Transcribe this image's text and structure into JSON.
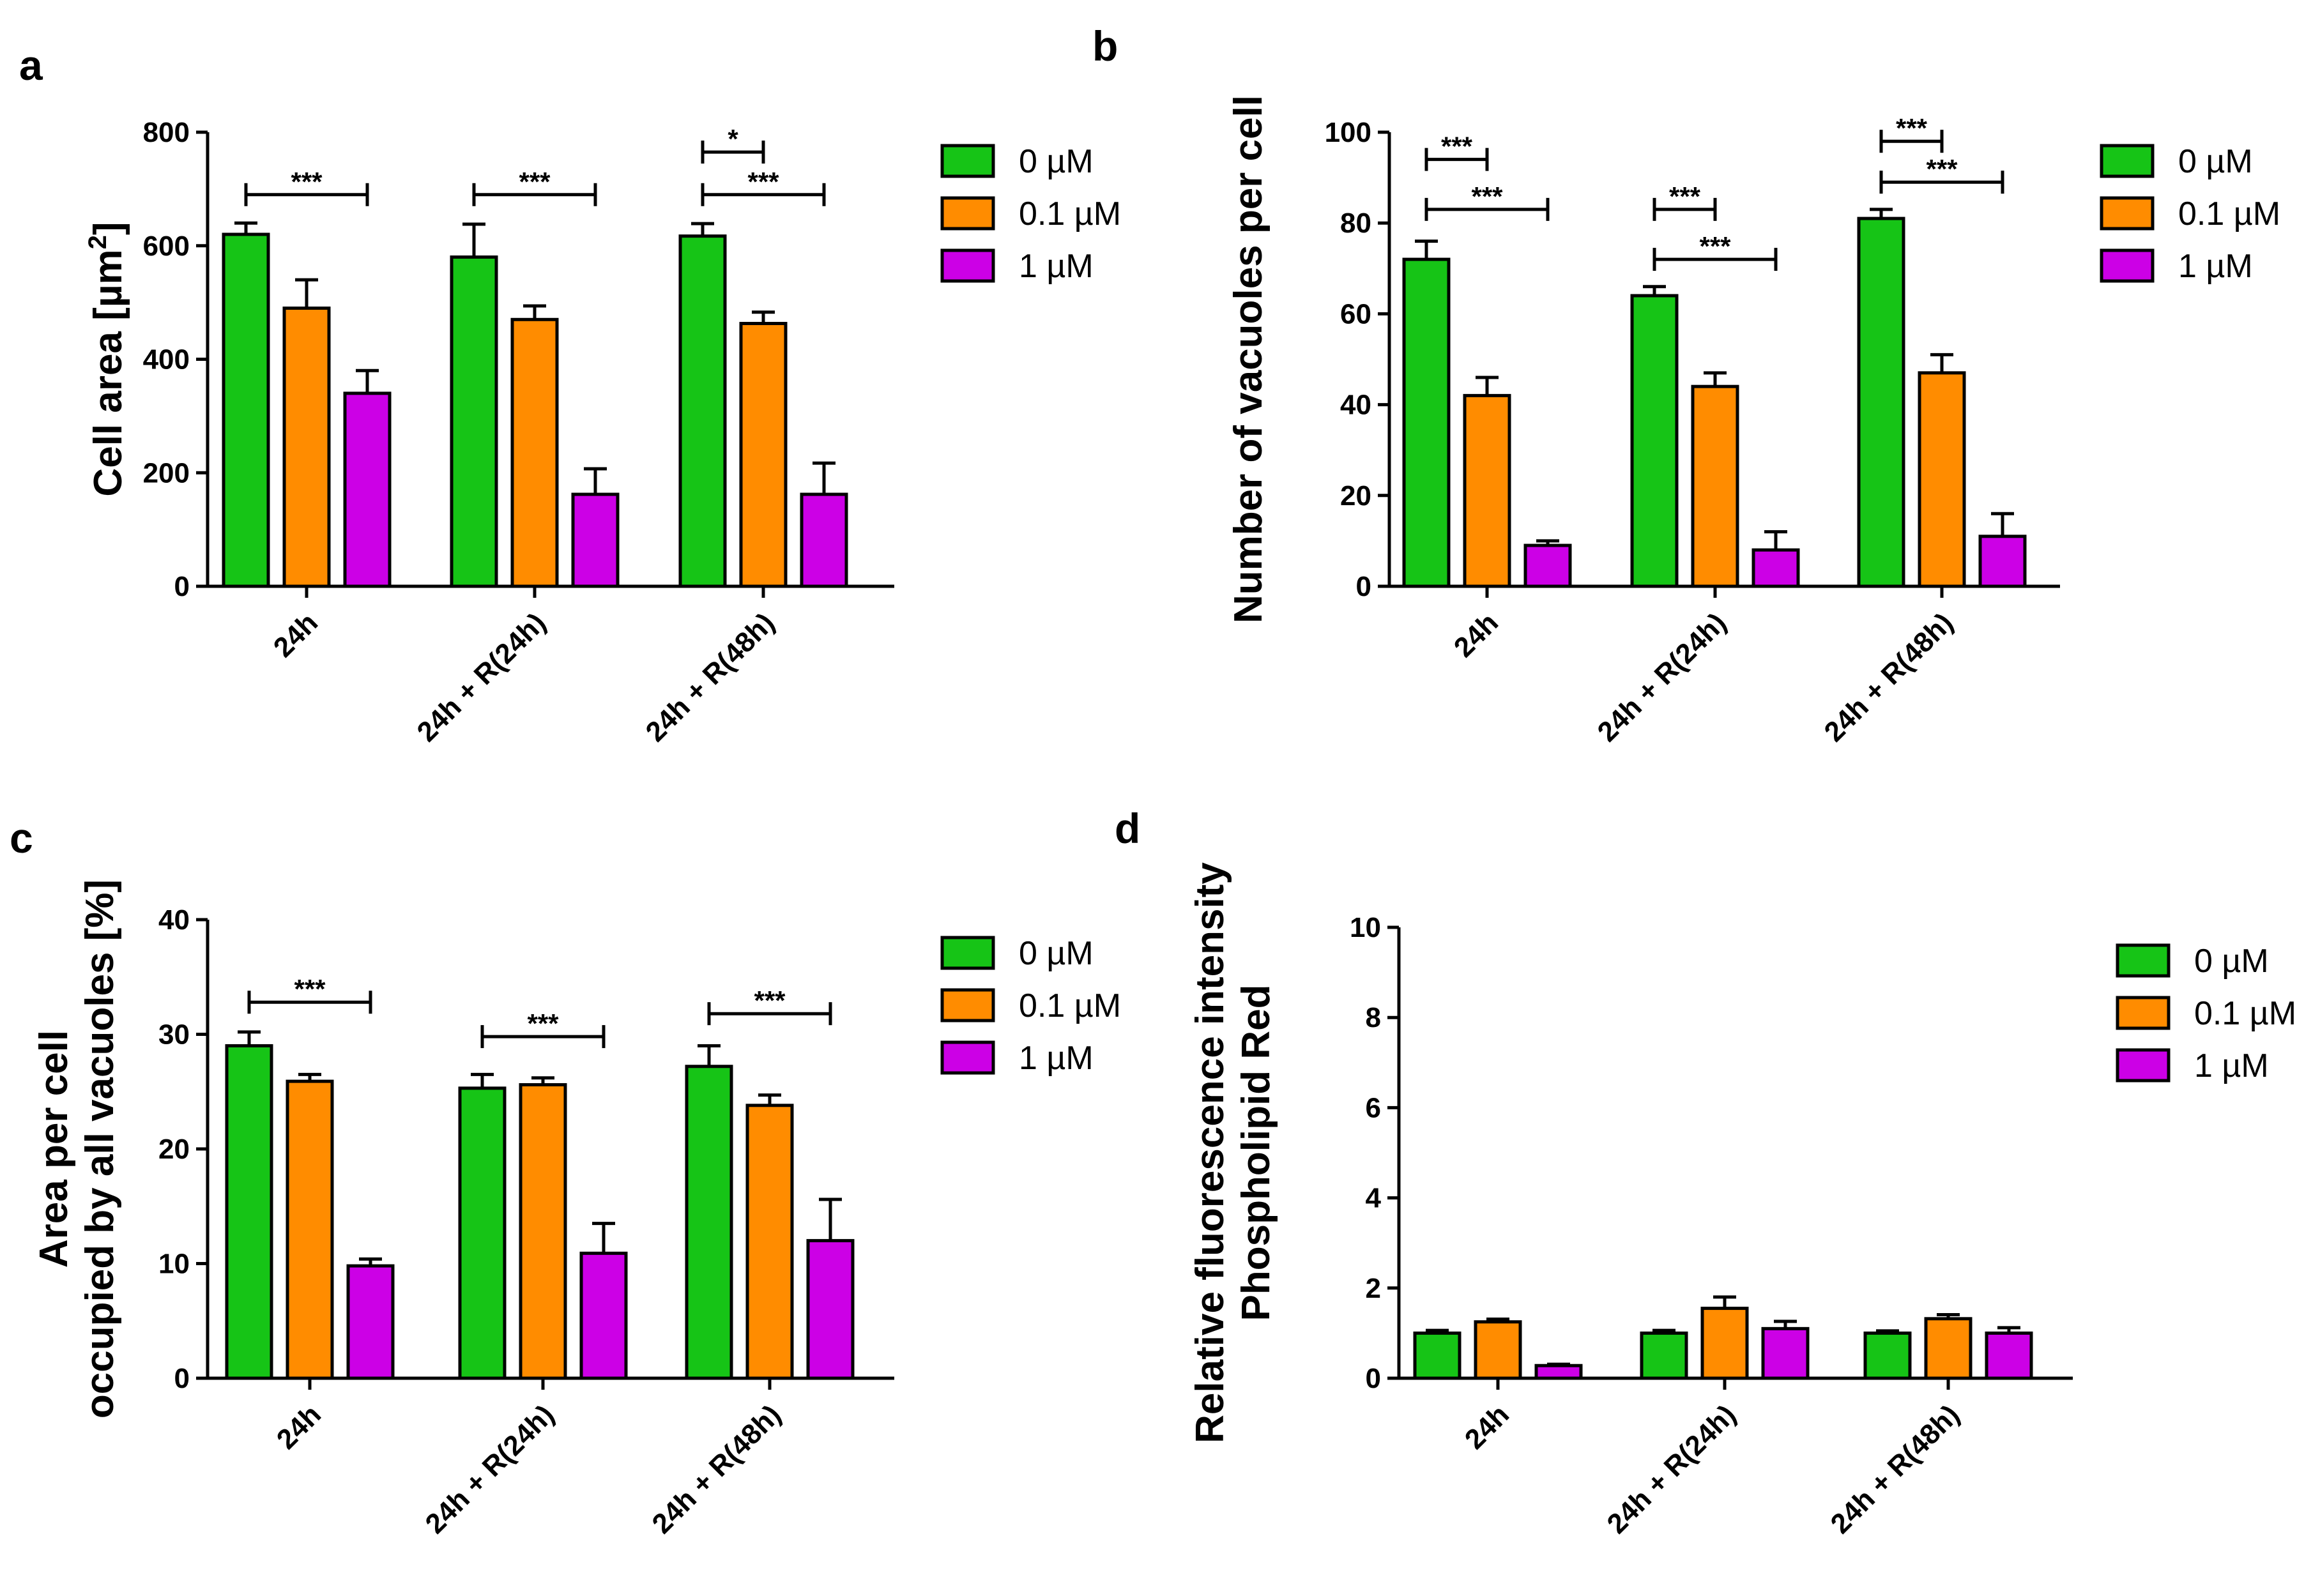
{
  "chart_data": [
    {
      "type": "bar",
      "panel": "a",
      "title": "",
      "xlabel": "",
      "ylabel": "Cell area [µm",
      "ylabel_sup": "2",
      "ylabel_end": "]",
      "ylim": [
        0,
        800
      ],
      "yticks": [
        "0",
        "200",
        "400",
        "600",
        "800"
      ],
      "categories": [
        "24h",
        "24h + R(24h)",
        "24h + R(48h)"
      ],
      "series": [
        {
          "name": "0 µM",
          "color": "#16c416",
          "values": [
            620,
            580,
            617
          ],
          "errors": [
            20,
            58,
            22
          ]
        },
        {
          "name": "0.1 µM",
          "color": "#ff8c00",
          "values": [
            490,
            470,
            463
          ],
          "errors": [
            50,
            24,
            20
          ]
        },
        {
          "name": "1 µM",
          "color": "#cc00e6",
          "values": [
            340,
            162,
            162
          ],
          "errors": [
            40,
            45,
            55
          ]
        }
      ],
      "significance": [
        {
          "label": "***",
          "cat": 0,
          "from": 0,
          "to": 2,
          "level": 690
        },
        {
          "label": "***",
          "cat": 1,
          "from": 0,
          "to": 2,
          "level": 690
        },
        {
          "label": "*",
          "cat": 2,
          "from": 0,
          "to": 1,
          "level": 765
        },
        {
          "label": "***",
          "cat": 2,
          "from": 0,
          "to": 2,
          "level": 690
        }
      ]
    },
    {
      "type": "bar",
      "panel": "b",
      "title": "",
      "xlabel": "",
      "ylabel": "Number of vacuoles per cell",
      "ylim": [
        0,
        100
      ],
      "yticks": [
        "0",
        "20",
        "40",
        "60",
        "80",
        "100"
      ],
      "categories": [
        "24h",
        "24h + R(24h)",
        "24h + R(48h)"
      ],
      "series": [
        {
          "name": "0 µM",
          "color": "#16c416",
          "values": [
            72,
            64,
            81
          ],
          "errors": [
            4,
            2,
            2
          ]
        },
        {
          "name": "0.1 µM",
          "color": "#ff8c00",
          "values": [
            42,
            44,
            47
          ],
          "errors": [
            4,
            3,
            4
          ]
        },
        {
          "name": "1 µM",
          "color": "#cc00e6",
          "values": [
            9,
            8,
            11
          ],
          "errors": [
            1,
            4,
            5
          ]
        }
      ],
      "significance": [
        {
          "label": "***",
          "cat": 0,
          "from": 0,
          "to": 1,
          "level": 94
        },
        {
          "label": "***",
          "cat": 0,
          "from": 0,
          "to": 2,
          "level": 83
        },
        {
          "label": "***",
          "cat": 1,
          "from": 0,
          "to": 1,
          "level": 83
        },
        {
          "label": "***",
          "cat": 1,
          "from": 0,
          "to": 2,
          "level": 72
        },
        {
          "label": "***",
          "cat": 2,
          "from": 0,
          "to": 1,
          "level": 98
        },
        {
          "label": "***",
          "cat": 2,
          "from": 0,
          "to": 2,
          "level": 89
        }
      ]
    },
    {
      "type": "bar",
      "panel": "c",
      "title": "",
      "xlabel": "",
      "ylabel": "Area per cell",
      "ylabel2": "occupied by all vacuoles [%]",
      "ylim": [
        0,
        40
      ],
      "yticks": [
        "0",
        "10",
        "20",
        "30",
        "40"
      ],
      "categories": [
        "24h",
        "24h + R(24h)",
        "24h + R(48h)"
      ],
      "series": [
        {
          "name": "0 µM",
          "color": "#16c416",
          "values": [
            29,
            25.3,
            27.2
          ],
          "errors": [
            1.2,
            1.2,
            1.8
          ]
        },
        {
          "name": "0.1 µM",
          "color": "#ff8c00",
          "values": [
            25.9,
            25.6,
            23.8
          ],
          "errors": [
            0.6,
            0.6,
            0.9
          ]
        },
        {
          "name": "1 µM",
          "color": "#cc00e6",
          "values": [
            9.8,
            10.9,
            12
          ],
          "errors": [
            0.6,
            2.6,
            3.6
          ]
        }
      ],
      "significance": [
        {
          "label": "***",
          "cat": 0,
          "from": 0,
          "to": 2,
          "level": 32.8
        },
        {
          "label": "***",
          "cat": 1,
          "from": 0,
          "to": 2,
          "level": 29.8
        },
        {
          "label": "***",
          "cat": 2,
          "from": 0,
          "to": 2,
          "level": 31.8
        }
      ]
    },
    {
      "type": "bar",
      "panel": "d",
      "title": "",
      "xlabel": "",
      "ylabel": "Relative fluorescence intensity",
      "ylabel2": "Phospholipid Red",
      "ylim": [
        0,
        10
      ],
      "yticks": [
        "0",
        "2",
        "4",
        "6",
        "8",
        "10"
      ],
      "categories": [
        "24h",
        "24h + R(24h)",
        "24h + R(48h)"
      ],
      "series": [
        {
          "name": "0 µM",
          "color": "#16c416",
          "values": [
            1.0,
            1.0,
            1.0
          ],
          "errors": [
            0.06,
            0.06,
            0.05
          ]
        },
        {
          "name": "0.1 µM",
          "color": "#ff8c00",
          "values": [
            1.25,
            1.55,
            1.32
          ],
          "errors": [
            0.06,
            0.25,
            0.09
          ]
        },
        {
          "name": "1 µM",
          "color": "#cc00e6",
          "values": [
            0.28,
            1.1,
            1.0
          ],
          "errors": [
            0.03,
            0.16,
            0.12
          ]
        }
      ],
      "significance": []
    }
  ]
}
